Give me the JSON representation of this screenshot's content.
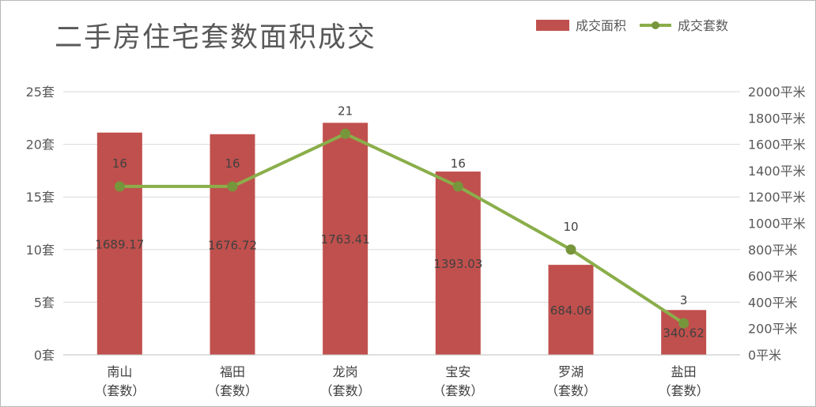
{
  "chart_data": {
    "type": "bar+line",
    "title": "二手房住宅套数面积成交",
    "categories": [
      [
        "南山",
        "（套数）"
      ],
      [
        "福田",
        "（套数）"
      ],
      [
        "龙岗",
        "（套数）"
      ],
      [
        "宝安",
        "（套数）"
      ],
      [
        "罗湖",
        "（套数）"
      ],
      [
        "盐田",
        "（套数）"
      ]
    ],
    "series": [
      {
        "name": "成交面积",
        "type": "bar",
        "axis": "right",
        "values": [
          1689.17,
          1676.72,
          1763.41,
          1393.03,
          684.06,
          340.62
        ],
        "labels": [
          "1689.17",
          "1676.72",
          "1763.41",
          "1393.03",
          "684.06",
          "340.62"
        ],
        "color": "#c0504d"
      },
      {
        "name": "成交套数",
        "type": "line",
        "axis": "left",
        "values": [
          16,
          16,
          21,
          16,
          10,
          3
        ],
        "labels": [
          "16",
          "16",
          "21",
          "16",
          "10",
          "3"
        ],
        "color": "#8aae4a",
        "marker_color": "#77963c"
      }
    ],
    "y_left": {
      "min": 0,
      "max": 25,
      "ticks": [
        0,
        5,
        10,
        15,
        20,
        25
      ],
      "tick_labels": [
        "0套",
        "5套",
        "10套",
        "15套",
        "20套",
        "25套"
      ]
    },
    "y_right": {
      "min": 0,
      "max": 2000,
      "ticks": [
        0,
        200,
        400,
        600,
        800,
        1000,
        1200,
        1400,
        1600,
        1800,
        2000
      ],
      "tick_labels": [
        "0平米",
        "200平米",
        "400平米",
        "600平米",
        "800平米",
        "1000平米",
        "1200平米",
        "1400平米",
        "1600平米",
        "1800平米",
        "2000平米"
      ]
    },
    "grid": true,
    "gridline_color": "#d9d9d9",
    "legend_position": "top-right"
  }
}
